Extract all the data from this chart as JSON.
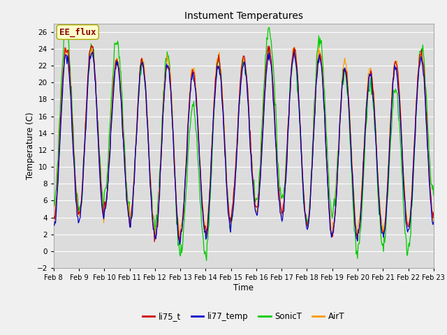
{
  "title": "Instument Temperatures",
  "xlabel": "Time",
  "ylabel": "Temperature (C)",
  "ylim": [
    -2,
    27
  ],
  "yticks": [
    -2,
    0,
    2,
    4,
    6,
    8,
    10,
    12,
    14,
    16,
    18,
    20,
    22,
    24,
    26
  ],
  "x_labels": [
    "Feb 8",
    "Feb 9",
    "Feb 10",
    "Feb 11",
    "Feb 12",
    "Feb 13",
    "Feb 14",
    "Feb 15",
    "Feb 16",
    "Feb 17",
    "Feb 18",
    "Feb 19",
    "Feb 20",
    "Feb 21",
    "Feb 22",
    "Feb 23"
  ],
  "colors": {
    "li75_t": "#cc0000",
    "li77_temp": "#0000cc",
    "SonicT": "#00cc00",
    "AirT": "#ff9900"
  },
  "annotation_text": "EE_flux",
  "annotation_color": "#8b0000",
  "annotation_bg": "#ffffcc",
  "fig_bg": "#f0f0f0",
  "plot_bg": "#dcdcdc",
  "grid_color": "#ffffff",
  "n_points": 600,
  "figsize": [
    6.4,
    4.8
  ],
  "dpi": 100
}
